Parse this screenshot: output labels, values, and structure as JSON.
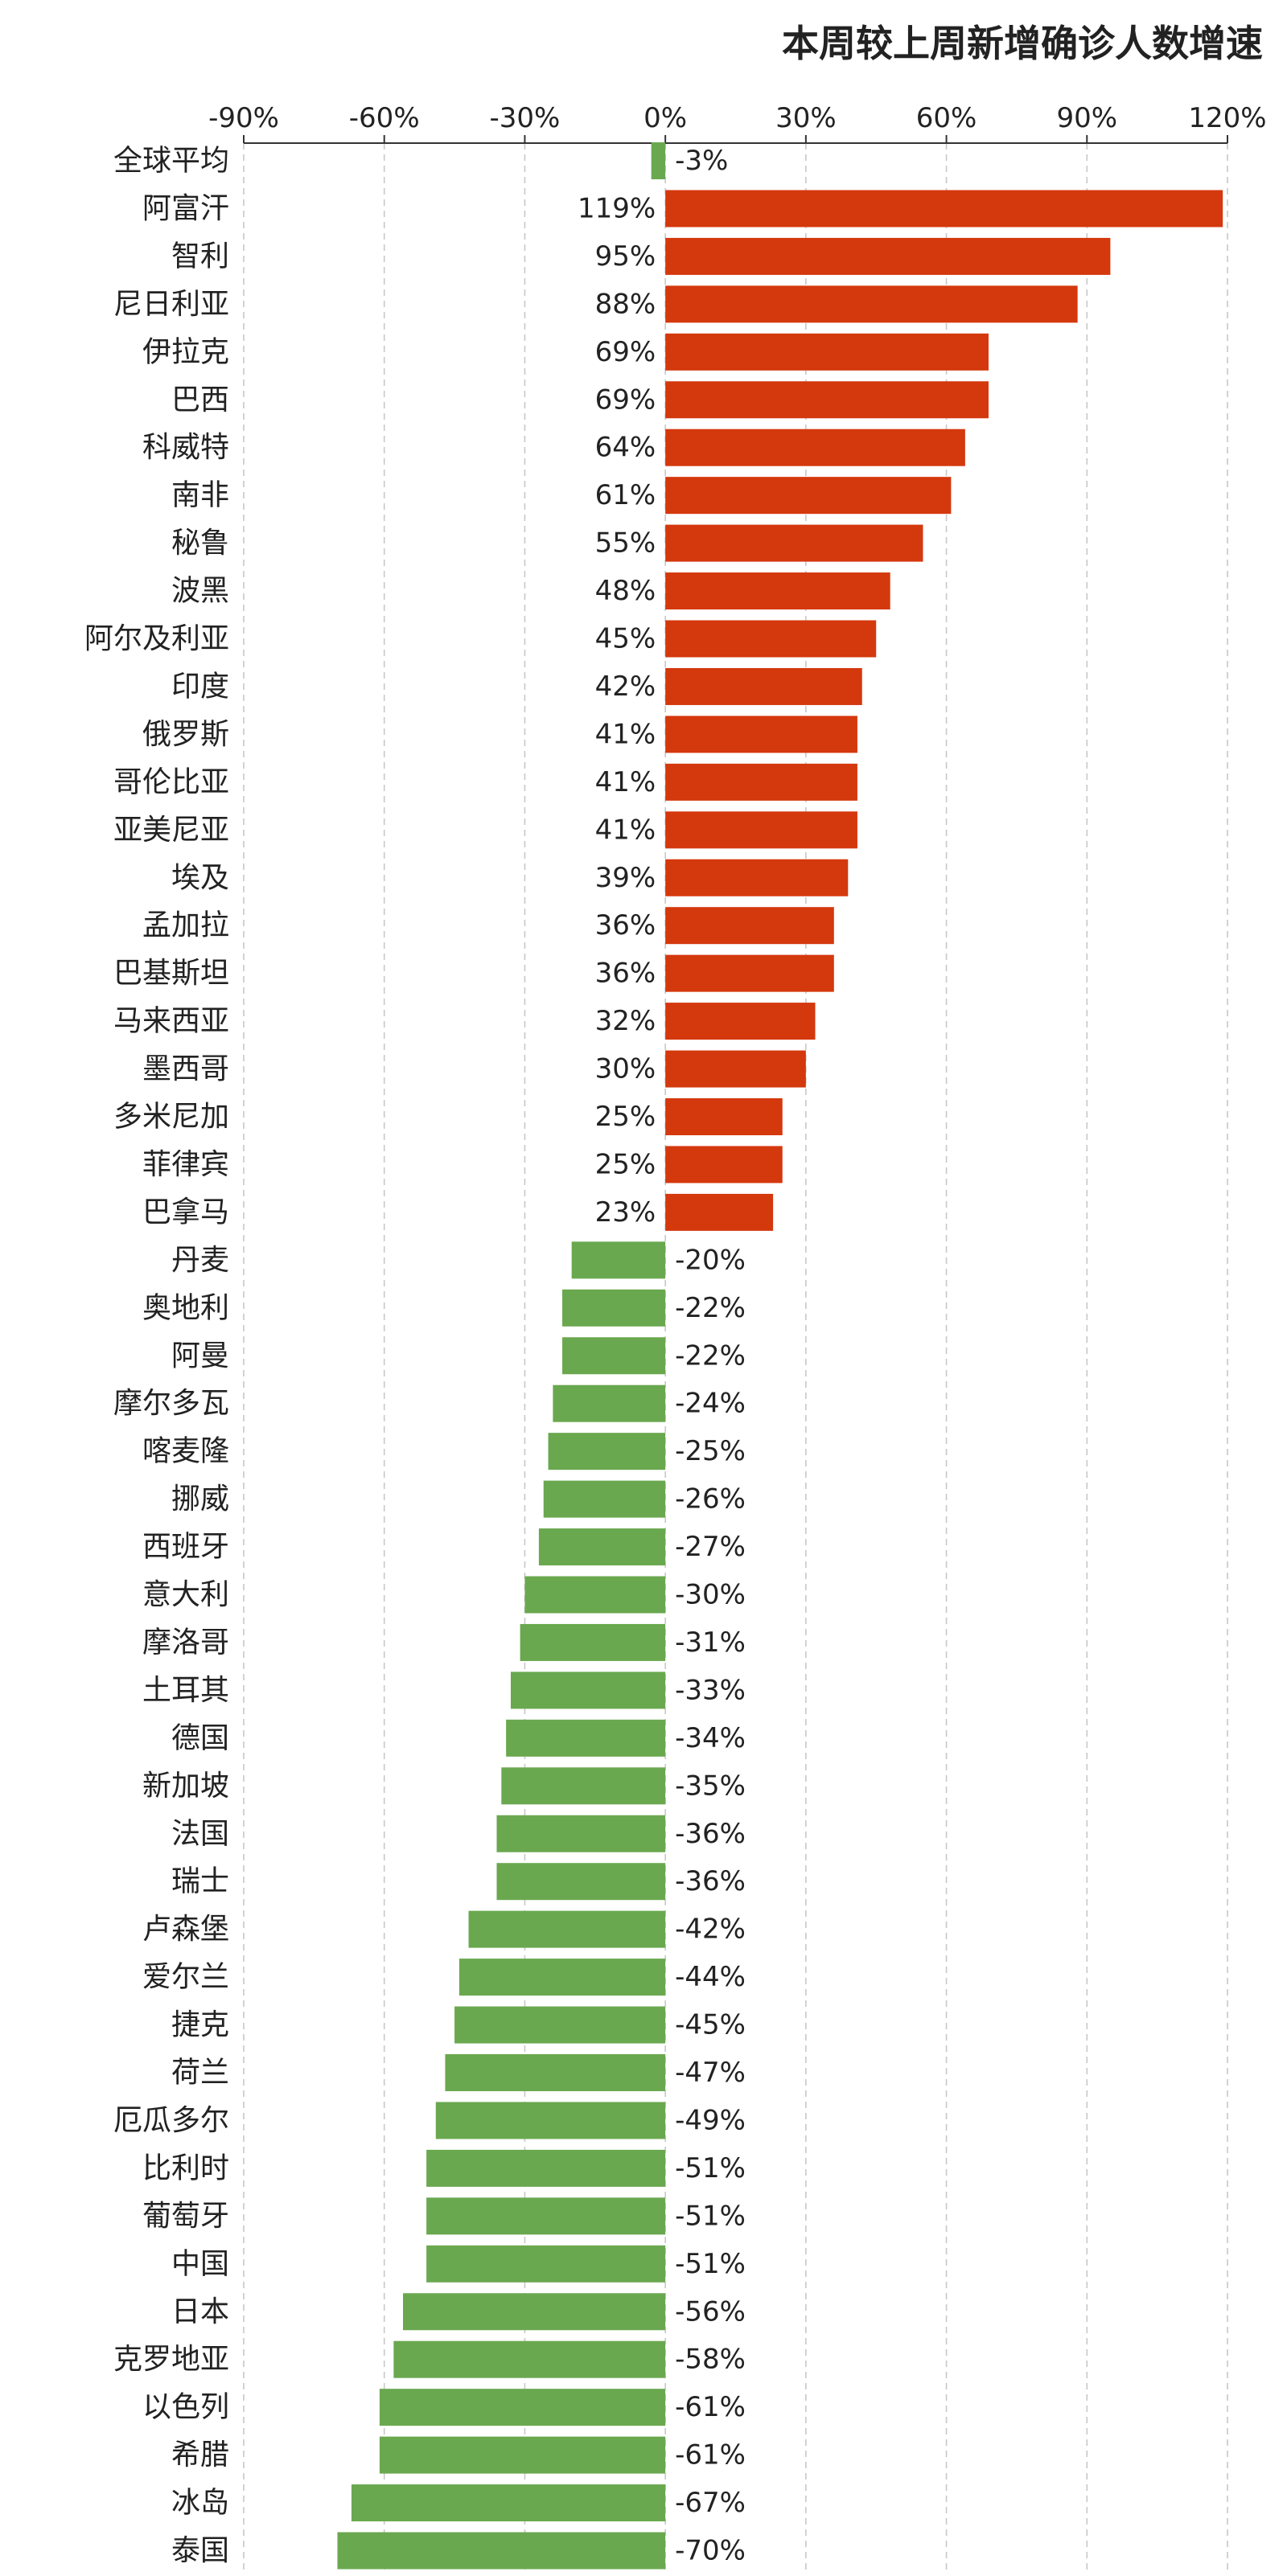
{
  "chart_data": {
    "type": "bar",
    "orientation": "horizontal",
    "title": "本周较上周新增确诊人数增速",
    "xlabel": "",
    "ylabel": "",
    "xlim": [
      -90,
      120
    ],
    "x_ticks": [
      -90,
      -60,
      -30,
      0,
      30,
      60,
      90,
      120
    ],
    "x_tick_labels": [
      "-90%",
      "-60%",
      "-30%",
      "0%",
      "30%",
      "60%",
      "90%",
      "120%"
    ],
    "value_unit": "%",
    "grid": "vertical dashed",
    "colors": {
      "positive": "#d4380d",
      "negative": "#6aa84f",
      "grid": "#c8c8c8",
      "text": "#222222"
    },
    "categories": [
      "全球平均",
      "阿富汗",
      "智利",
      "尼日利亚",
      "伊拉克",
      "巴西",
      "科威特",
      "南非",
      "秘鲁",
      "波黑",
      "阿尔及利亚",
      "印度",
      "俄罗斯",
      "哥伦比亚",
      "亚美尼亚",
      "埃及",
      "孟加拉",
      "巴基斯坦",
      "马来西亚",
      "墨西哥",
      "多米尼加",
      "菲律宾",
      "巴拿马",
      "丹麦",
      "奥地利",
      "阿曼",
      "摩尔多瓦",
      "喀麦隆",
      "挪威",
      "西班牙",
      "意大利",
      "摩洛哥",
      "土耳其",
      "德国",
      "新加坡",
      "法国",
      "瑞士",
      "卢森堡",
      "爱尔兰",
      "捷克",
      "荷兰",
      "厄瓜多尔",
      "比利时",
      "葡萄牙",
      "中国",
      "日本",
      "克罗地亚",
      "以色列",
      "希腊",
      "冰岛",
      "泰国"
    ],
    "values": [
      -3,
      119,
      95,
      88,
      69,
      69,
      64,
      61,
      55,
      48,
      45,
      42,
      41,
      41,
      41,
      39,
      36,
      36,
      32,
      30,
      25,
      25,
      23,
      -20,
      -22,
      -22,
      -24,
      -25,
      -26,
      -27,
      -30,
      -31,
      -33,
      -34,
      -35,
      -36,
      -36,
      -42,
      -44,
      -45,
      -47,
      -49,
      -51,
      -51,
      -51,
      -56,
      -58,
      -61,
      -61,
      -67,
      -70
    ],
    "value_labels": [
      "-3%",
      "119%",
      "95%",
      "88%",
      "69%",
      "69%",
      "64%",
      "61%",
      "55%",
      "48%",
      "45%",
      "42%",
      "41%",
      "41%",
      "41%",
      "39%",
      "36%",
      "36%",
      "32%",
      "30%",
      "25%",
      "25%",
      "23%",
      "-20%",
      "-22%",
      "-22%",
      "-24%",
      "-25%",
      "-26%",
      "-27%",
      "-30%",
      "-31%",
      "-33%",
      "-34%",
      "-35%",
      "-36%",
      "-36%",
      "-42%",
      "-44%",
      "-45%",
      "-47%",
      "-49%",
      "-51%",
      "-51%",
      "-51%",
      "-56%",
      "-58%",
      "-61%",
      "-61%",
      "-67%",
      "-70%"
    ]
  }
}
